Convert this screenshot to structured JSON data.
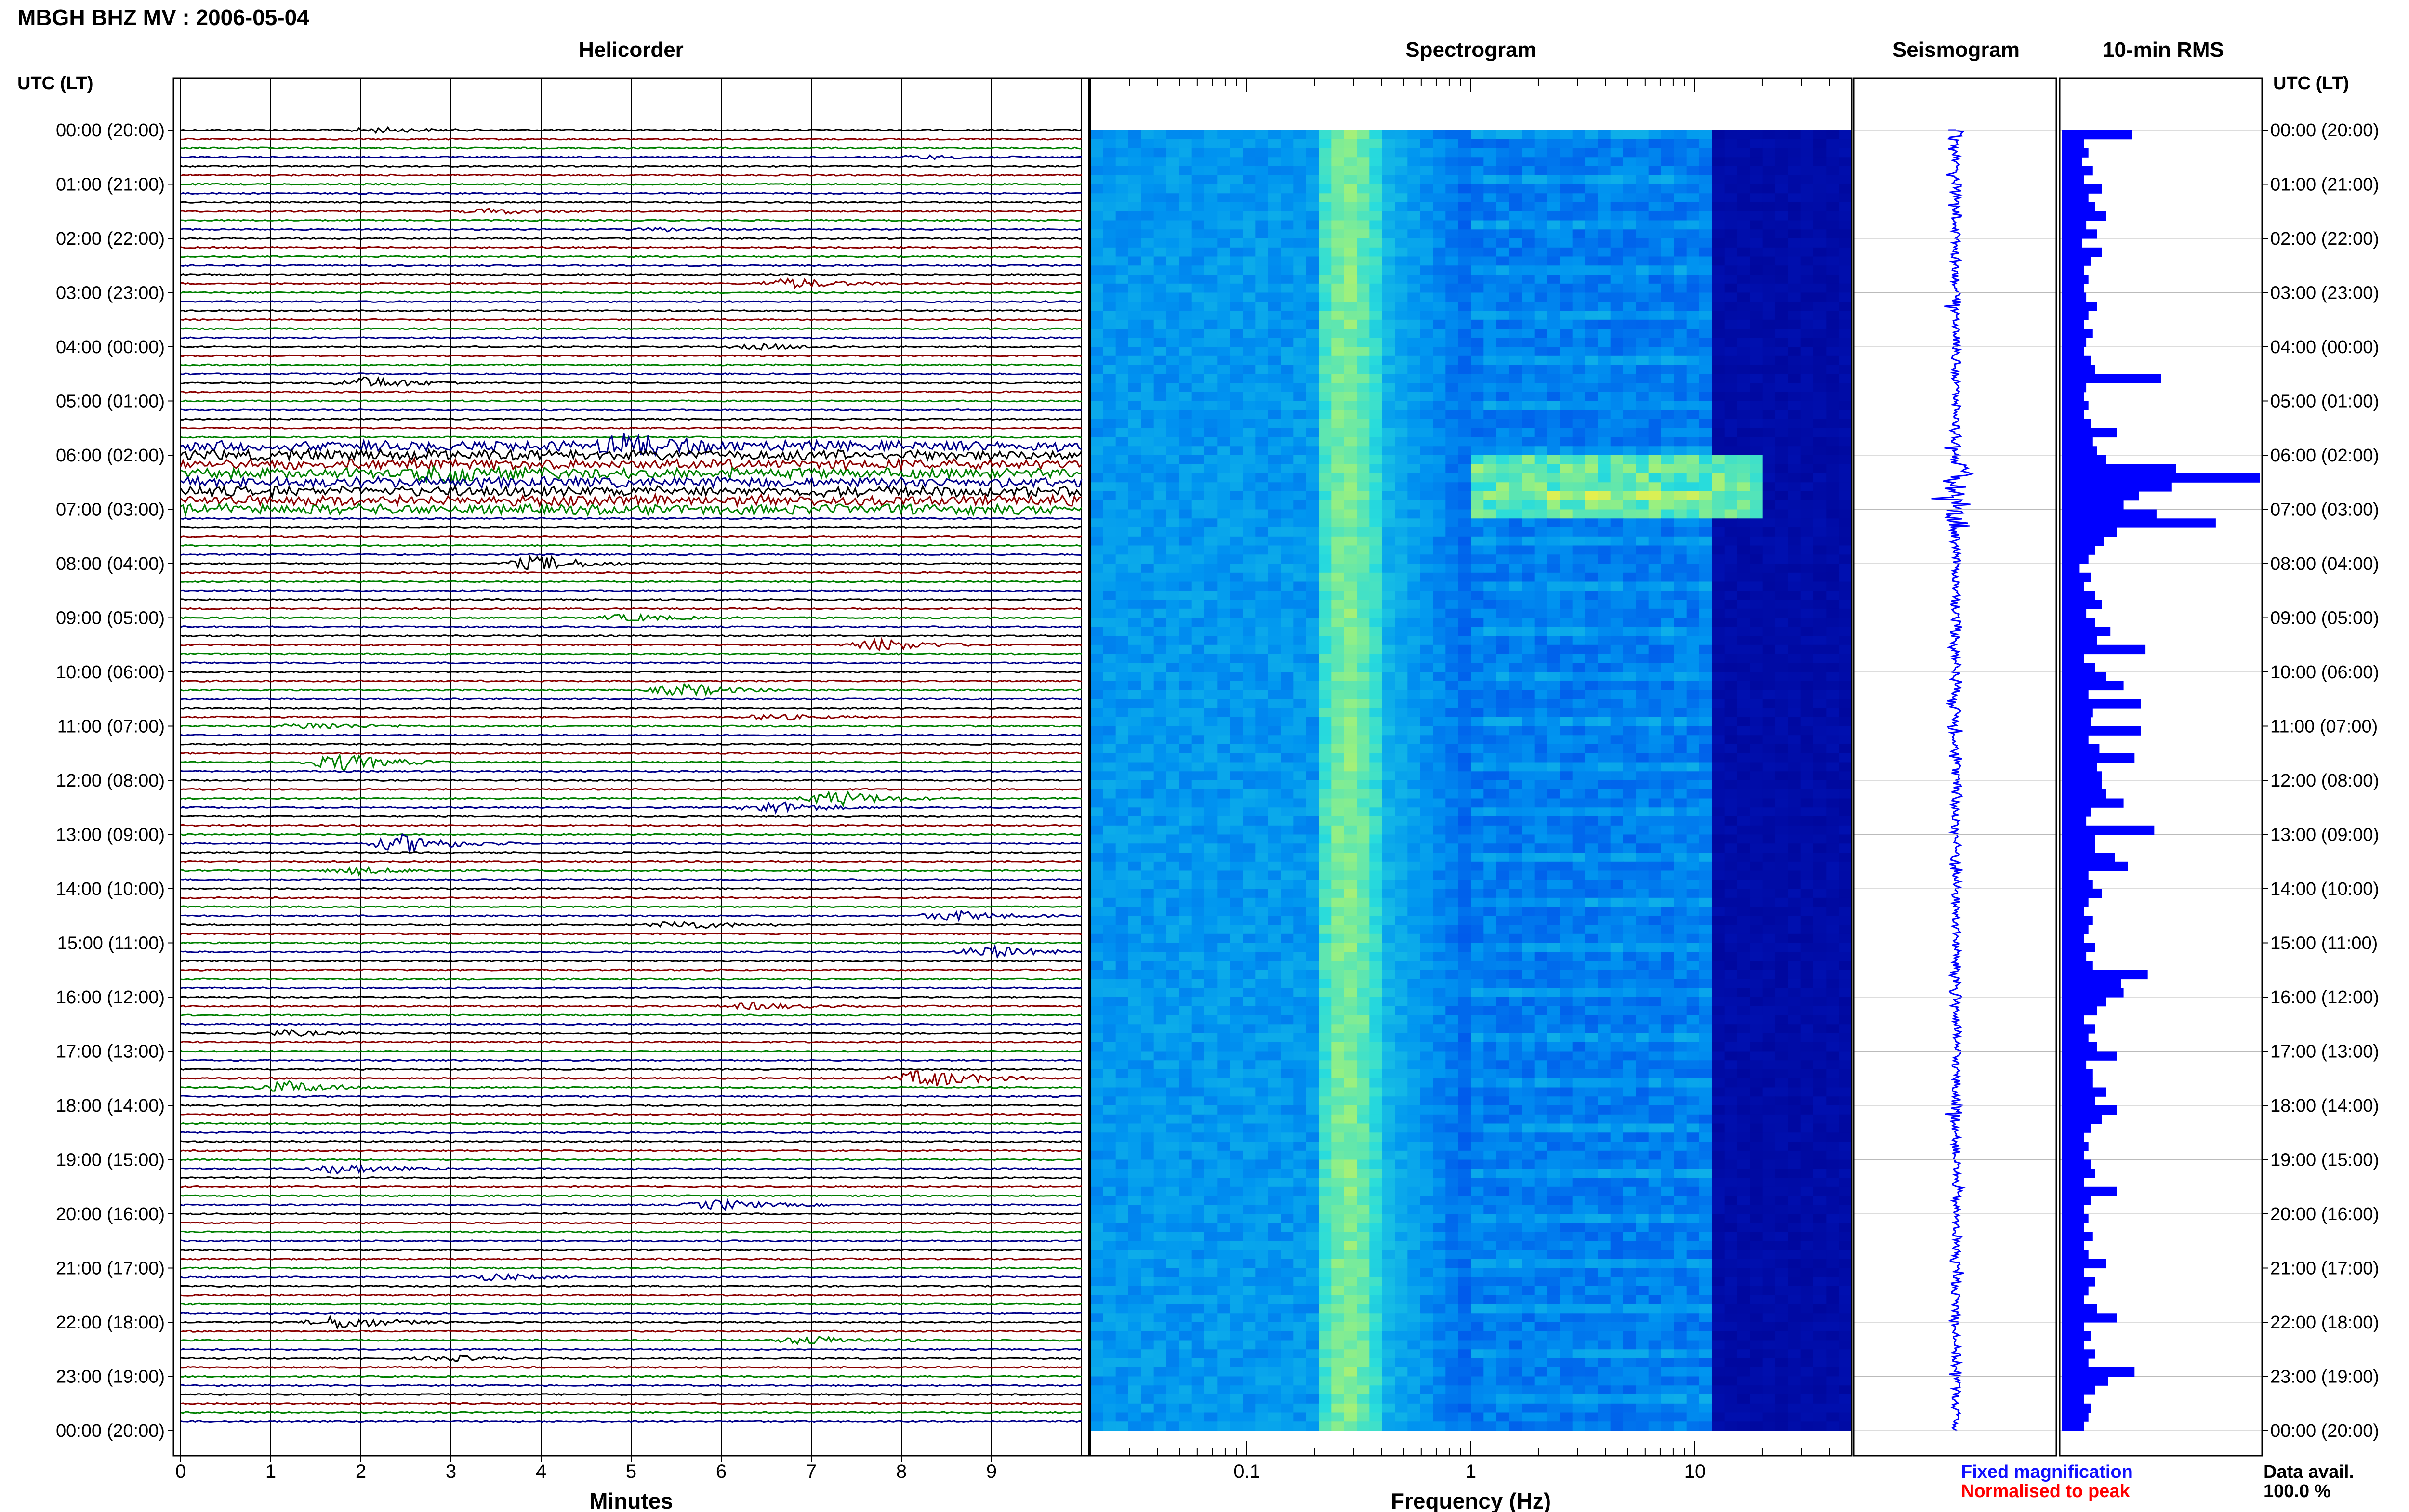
{
  "header": {
    "station": "MBGH BHZ MV : 2006-05-04"
  },
  "panels": {
    "helicorder": "Helicorder",
    "spectrogram": "Spectrogram",
    "seismogram": "Seismogram",
    "rms": "10-min RMS"
  },
  "axis": {
    "left_title": "UTC (LT)",
    "right_title": "UTC (LT)",
    "hour_labels": [
      "00:00 (20:00)",
      "01:00 (21:00)",
      "02:00 (22:00)",
      "03:00 (23:00)",
      "04:00 (00:00)",
      "05:00 (01:00)",
      "06:00 (02:00)",
      "07:00 (03:00)",
      "08:00 (04:00)",
      "09:00 (05:00)",
      "10:00 (06:00)",
      "11:00 (07:00)",
      "12:00 (08:00)",
      "13:00 (09:00)",
      "14:00 (10:00)",
      "15:00 (11:00)",
      "16:00 (12:00)",
      "17:00 (13:00)",
      "18:00 (14:00)",
      "19:00 (15:00)",
      "20:00 (16:00)",
      "21:00 (17:00)",
      "22:00 (18:00)",
      "23:00 (19:00)",
      "00:00 (20:00)"
    ],
    "minutes_label": "Minutes",
    "minute_ticks": [
      "0",
      "1",
      "2",
      "3",
      "4",
      "5",
      "6",
      "7",
      "8",
      "9"
    ],
    "frequency_label": "Frequency (Hz)",
    "frequency_ticks": [
      "0.1",
      "1",
      "10"
    ]
  },
  "legend": {
    "fixed": "Fixed magnification",
    "normalised": "Normalised to peak",
    "fixed_color": "#1010ff",
    "normalised_color": "#ff0000",
    "data_avail_label": "Data avail.",
    "data_avail_value": "100.0 %"
  },
  "colors": {
    "trace_cycle": [
      "#000000",
      "#8b0000",
      "#008000",
      "#00008b"
    ],
    "rms_bar": "#0000ff",
    "seismogram": "#0000ff"
  },
  "chart_data": [
    {
      "type": "line",
      "title": "Helicorder",
      "xlabel": "Minutes",
      "xlim": [
        0,
        10
      ],
      "ylabel": "UTC (LT)",
      "rows_per_hour": 6,
      "total_rows": 144,
      "events": [
        {
          "row": 0,
          "minute": 2.2,
          "amp": 0.6
        },
        {
          "row": 3,
          "minute": 8.3,
          "amp": 0.4
        },
        {
          "row": 9,
          "minute": 3.5,
          "amp": 0.6
        },
        {
          "row": 11,
          "minute": 5.4,
          "amp": 0.4
        },
        {
          "row": 17,
          "minute": 6.8,
          "amp": 1.2
        },
        {
          "row": 24,
          "minute": 6.5,
          "amp": 0.6
        },
        {
          "row": 28,
          "minute": 2.1,
          "amp": 1.4
        },
        {
          "row": 35,
          "minute": 5.0,
          "amp": 2.2
        },
        {
          "row": 38,
          "minute": 3.0,
          "amp": 1.6
        },
        {
          "row": 48,
          "minute": 4.0,
          "amp": 1.8
        },
        {
          "row": 54,
          "minute": 5.0,
          "amp": 0.8
        },
        {
          "row": 57,
          "minute": 7.8,
          "amp": 1.4
        },
        {
          "row": 62,
          "minute": 5.6,
          "amp": 1.4
        },
        {
          "row": 65,
          "minute": 6.6,
          "amp": 0.6
        },
        {
          "row": 66,
          "minute": 1.5,
          "amp": 0.8
        },
        {
          "row": 70,
          "minute": 1.8,
          "amp": 2.0
        },
        {
          "row": 74,
          "minute": 7.3,
          "amp": 1.8
        },
        {
          "row": 75,
          "minute": 6.6,
          "amp": 1.4
        },
        {
          "row": 79,
          "minute": 2.5,
          "amp": 2.2
        },
        {
          "row": 82,
          "minute": 2.0,
          "amp": 0.8
        },
        {
          "row": 87,
          "minute": 8.6,
          "amp": 1.2
        },
        {
          "row": 88,
          "minute": 5.6,
          "amp": 1.0
        },
        {
          "row": 91,
          "minute": 9.0,
          "amp": 1.4
        },
        {
          "row": 97,
          "minute": 6.4,
          "amp": 0.8
        },
        {
          "row": 100,
          "minute": 1.2,
          "amp": 0.6
        },
        {
          "row": 105,
          "minute": 8.3,
          "amp": 2.2
        },
        {
          "row": 106,
          "minute": 1.2,
          "amp": 1.4
        },
        {
          "row": 115,
          "minute": 1.8,
          "amp": 1.2
        },
        {
          "row": 119,
          "minute": 6.0,
          "amp": 1.2
        },
        {
          "row": 127,
          "minute": 3.5,
          "amp": 0.8
        },
        {
          "row": 132,
          "minute": 1.8,
          "amp": 1.6
        },
        {
          "row": 134,
          "minute": 7.0,
          "amp": 1.0
        },
        {
          "row": 136,
          "minute": 3.0,
          "amp": 0.6
        }
      ],
      "noisy_rows": [
        35,
        36,
        37,
        38,
        39,
        40,
        41,
        42
      ]
    },
    {
      "type": "heatmap",
      "title": "Spectrogram",
      "xlabel": "Frequency (Hz)",
      "x_scale": "log",
      "xlim": [
        0.02,
        50
      ],
      "ylabel": "UTC (LT)",
      "ylim": [
        0,
        24
      ],
      "high_energy_window_hours": [
        6.0,
        7.1
      ],
      "high_energy_band_hz": [
        1,
        20
      ]
    },
    {
      "type": "line",
      "title": "Seismogram",
      "ylabel": "UTC (LT)",
      "ylim": [
        0,
        24
      ]
    },
    {
      "type": "bar",
      "title": "10-min RMS",
      "orientation": "horizontal",
      "categories_hours": [
        0,
        24
      ],
      "values": [
        3.2,
        1.0,
        1.2,
        0.9,
        1.4,
        1.0,
        1.8,
        1.2,
        1.5,
        2.0,
        1.1,
        1.6,
        0.9,
        1.8,
        1.3,
        1.0,
        1.2,
        1.0,
        1.1,
        1.6,
        1.2,
        1.0,
        1.4,
        1.1,
        1.0,
        1.3,
        1.5,
        4.5,
        1.1,
        1.0,
        1.2,
        1.0,
        1.3,
        2.5,
        1.4,
        1.6,
        2.0,
        5.2,
        9.0,
        5.0,
        3.5,
        2.8,
        4.3,
        7.0,
        2.5,
        1.9,
        1.5,
        1.2,
        0.8,
        1.3,
        1.0,
        1.5,
        1.8,
        1.1,
        1.5,
        2.2,
        1.6,
        3.8,
        1.0,
        1.5,
        2.0,
        2.8,
        1.2,
        3.6,
        1.4,
        1.3,
        3.6,
        1.2,
        1.7,
        3.3,
        1.6,
        1.8,
        1.8,
        2.0,
        2.8,
        1.3,
        1.1,
        4.2,
        1.5,
        1.5,
        2.4,
        3.0,
        1.2,
        1.4,
        1.8,
        1.2,
        1.0,
        1.4,
        1.2,
        1.0,
        1.5,
        1.1,
        1.4,
        3.9,
        2.7,
        2.8,
        2.0,
        1.6,
        1.0,
        1.5,
        1.2,
        1.6,
        2.5,
        1.1,
        1.4,
        1.4,
        2.0,
        1.5,
        2.5,
        1.8,
        1.3,
        1.0,
        1.2,
        1.0,
        1.3,
        1.5,
        1.0,
        2.5,
        1.3,
        1.0,
        1.2,
        1.0,
        1.4,
        1.0,
        1.2,
        2.0,
        1.0,
        1.5,
        1.2,
        1.0,
        1.6,
        2.5,
        1.0,
        1.3,
        1.0,
        1.5,
        1.2,
        3.3,
        2.1,
        1.5,
        1.0,
        1.3,
        1.2,
        1.0
      ],
      "xlim": [
        0,
        9.0
      ]
    }
  ]
}
